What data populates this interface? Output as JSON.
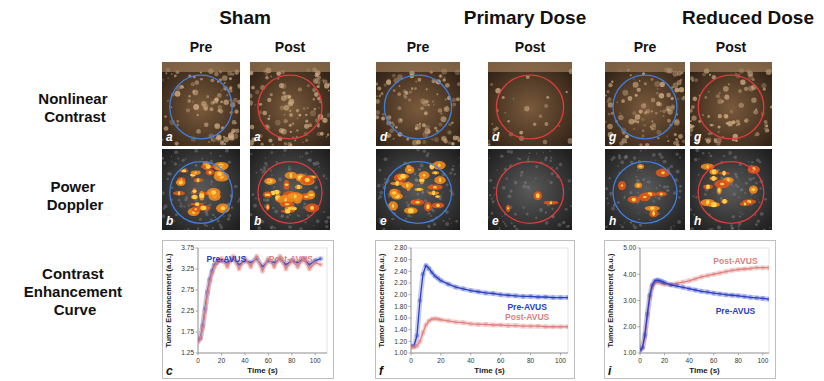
{
  "figure": {
    "columns": [
      {
        "title": "Sham",
        "pre": "Pre",
        "post": "Post"
      },
      {
        "title": "Primary Dose",
        "pre": "Pre",
        "post": "Post"
      },
      {
        "title": "Reduced Dose",
        "pre": "Pre",
        "post": "Post"
      }
    ],
    "rows": [
      "Nonlinear Contrast",
      "Power Doppler",
      "Contrast Enhancement Curve"
    ],
    "image_panels": [
      [
        "a",
        "b"
      ],
      [
        "d",
        "e"
      ],
      [
        "g",
        "h"
      ]
    ]
  },
  "chart_data": [
    {
      "type": "line",
      "annotation": "c",
      "x_label": "Time (s)",
      "y_label": "Tumor Enhancement (a.u.)",
      "x": [
        0,
        2,
        4,
        6,
        8,
        10,
        12,
        14,
        16,
        18,
        20,
        25,
        30,
        35,
        40,
        45,
        50,
        55,
        60,
        65,
        70,
        75,
        80,
        85,
        90,
        95,
        100,
        105
      ],
      "xlim": [
        0,
        110
      ],
      "xticks": [
        0,
        20,
        40,
        60,
        80,
        100
      ],
      "ylim": [
        1.25,
        3.75
      ],
      "yticks": [
        1.25,
        1.75,
        2.25,
        2.75,
        3.25,
        3.75
      ],
      "grid": false,
      "marker": "circle",
      "series": [
        {
          "name": "Pre-AVUS",
          "color": "#2a3fc4",
          "values": [
            1.55,
            1.6,
            1.9,
            2.3,
            2.7,
            3.0,
            3.2,
            3.35,
            3.4,
            3.45,
            3.45,
            3.4,
            3.5,
            3.35,
            3.45,
            3.4,
            3.5,
            3.3,
            3.45,
            3.4,
            3.5,
            3.35,
            3.45,
            3.4,
            3.5,
            3.35,
            3.45,
            3.5
          ]
        },
        {
          "name": "Post-AVUS",
          "color": "#e0807e",
          "values": [
            1.5,
            1.6,
            1.85,
            2.25,
            2.65,
            2.95,
            3.15,
            3.3,
            3.4,
            3.45,
            3.5,
            3.3,
            3.55,
            3.25,
            3.5,
            3.3,
            3.55,
            3.2,
            3.5,
            3.3,
            3.55,
            3.25,
            3.45,
            3.3,
            3.5,
            3.25,
            3.4,
            3.35
          ]
        }
      ]
    },
    {
      "type": "line",
      "annotation": "f",
      "x_label": "Time (s)",
      "y_label": "Tumor Enhancement (a.u.)",
      "x": [
        0,
        2,
        4,
        6,
        8,
        10,
        12,
        14,
        16,
        18,
        20,
        25,
        30,
        35,
        40,
        45,
        50,
        55,
        60,
        65,
        70,
        75,
        80,
        85,
        90,
        95,
        100,
        105
      ],
      "xlim": [
        0,
        105
      ],
      "xticks": [
        0,
        20,
        40,
        60,
        80,
        100
      ],
      "ylim": [
        1.0,
        2.8
      ],
      "yticks": [
        {
          "value": 1.0,
          "label": "1.00"
        },
        {
          "value": 1.2,
          "label": "1.20"
        },
        {
          "value": 1.4,
          "label": "1.40"
        },
        {
          "value": 1.6,
          "label": "1.60"
        },
        {
          "value": 1.8,
          "label": "1.80"
        },
        {
          "value": 2.0,
          "label": "2.00"
        },
        {
          "value": 2.2,
          "label": "2.20"
        },
        {
          "value": 2.4,
          "label": "2.40"
        },
        {
          "value": 2.6,
          "label": "2.60"
        },
        {
          "value": 2.8,
          "label": "2.80"
        }
      ],
      "grid": false,
      "marker": "circle",
      "series": [
        {
          "name": "Pre-AVUS",
          "color": "#2a3fc4",
          "values": [
            1.12,
            1.12,
            1.3,
            1.9,
            2.35,
            2.5,
            2.45,
            2.38,
            2.32,
            2.28,
            2.24,
            2.18,
            2.13,
            2.1,
            2.07,
            2.05,
            2.03,
            2.02,
            2.0,
            1.99,
            1.98,
            1.97,
            1.97,
            1.96,
            1.96,
            1.95,
            1.95,
            1.95
          ]
        },
        {
          "name": "Post-AVUS",
          "color": "#e0807e",
          "values": [
            1.1,
            1.1,
            1.12,
            1.2,
            1.35,
            1.48,
            1.55,
            1.58,
            1.59,
            1.58,
            1.57,
            1.55,
            1.53,
            1.52,
            1.5,
            1.49,
            1.49,
            1.48,
            1.48,
            1.47,
            1.47,
            1.46,
            1.46,
            1.46,
            1.45,
            1.45,
            1.45,
            1.45
          ]
        }
      ]
    },
    {
      "type": "line",
      "annotation": "i",
      "x_label": "Time (s)",
      "y_label": "Tumor Enhancement (a.u.)",
      "x": [
        0,
        2,
        4,
        6,
        8,
        10,
        12,
        14,
        16,
        18,
        20,
        25,
        30,
        35,
        40,
        45,
        50,
        55,
        60,
        65,
        70,
        75,
        80,
        85,
        90,
        95,
        100,
        105
      ],
      "xlim": [
        0,
        105
      ],
      "xticks": [
        0,
        20,
        40,
        60,
        80,
        100
      ],
      "ylim": [
        1.0,
        5.0
      ],
      "yticks": [
        {
          "value": 1.0,
          "label": "1.00"
        },
        {
          "value": 2.0,
          "label": "2.00"
        },
        {
          "value": 3.0,
          "label": "3.00"
        },
        {
          "value": 4.0,
          "label": "4.00"
        },
        {
          "value": 5.0,
          "label": "5.00"
        }
      ],
      "grid": false,
      "marker": "circle",
      "series": [
        {
          "name": "Post-AVUS",
          "color": "#e0807e",
          "values": [
            1.1,
            1.2,
            1.6,
            2.4,
            3.1,
            3.5,
            3.65,
            3.7,
            3.68,
            3.65,
            3.62,
            3.6,
            3.65,
            3.7,
            3.75,
            3.82,
            3.9,
            3.95,
            4.0,
            4.05,
            4.1,
            4.15,
            4.18,
            4.2,
            4.22,
            4.25,
            4.25,
            4.25
          ]
        },
        {
          "name": "Pre-AVUS",
          "color": "#2a3fc4",
          "values": [
            1.1,
            1.2,
            1.7,
            2.5,
            3.2,
            3.6,
            3.75,
            3.78,
            3.76,
            3.72,
            3.68,
            3.6,
            3.55,
            3.5,
            3.45,
            3.4,
            3.35,
            3.32,
            3.28,
            3.25,
            3.22,
            3.2,
            3.18,
            3.15,
            3.12,
            3.1,
            3.08,
            3.05
          ]
        }
      ]
    }
  ]
}
